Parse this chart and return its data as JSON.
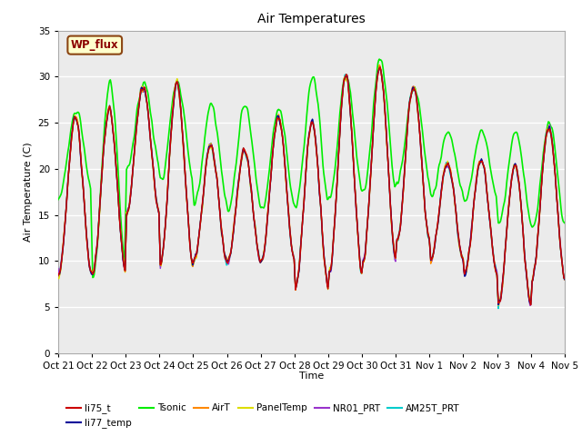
{
  "title": "Air Temperatures",
  "xlabel": "Time",
  "ylabel": "Air Temperature (C)",
  "ylim": [
    0,
    35
  ],
  "yticks": [
    0,
    5,
    10,
    15,
    20,
    25,
    30,
    35
  ],
  "annotation_text": "WP_flux",
  "annotation_color": "#8B0000",
  "annotation_bg": "#FFFFCC",
  "annotation_border": "#8B4513",
  "series_colors": {
    "li75_t": "#CC0000",
    "li77_temp": "#000099",
    "Tsonic": "#00EE00",
    "AirT": "#FF8800",
    "PanelTemp": "#DDDD00",
    "NR01_PRT": "#9933CC",
    "AM25T_PRT": "#00CCCC"
  },
  "x_tick_labels": [
    "Oct 21",
    "Oct 22",
    "Oct 23",
    "Oct 24",
    "Oct 25",
    "Oct 26",
    "Oct 27",
    "Oct 28",
    "Oct 29",
    "Oct 30",
    "Oct 31",
    "Nov 1",
    "Nov 2",
    "Nov 3",
    "Nov 4",
    "Nov 5"
  ],
  "plot_bg_color": "#EBEBEB",
  "grid_color": "#FFFFFF",
  "daily_peaks": [
    25.5,
    26.5,
    29.0,
    29.0,
    22.5,
    22.0,
    25.5,
    25.0,
    30.0,
    31.0,
    29.0,
    20.5,
    21.0,
    20.5,
    24.5,
    25.0
  ],
  "daily_troughs": [
    8.5,
    8.5,
    15.0,
    9.5,
    10.0,
    10.0,
    10.0,
    7.0,
    8.5,
    10.0,
    12.0,
    10.0,
    8.5,
    5.0,
    8.0,
    10.0
  ],
  "tsonic_peaks": [
    26.5,
    29.5,
    29.5,
    29.5,
    27.0,
    27.0,
    26.5,
    30.0,
    30.0,
    32.0,
    29.0,
    24.0,
    24.0,
    24.0,
    25.0,
    25.5
  ],
  "tsonic_troughs": [
    17.0,
    8.5,
    20.0,
    18.5,
    16.0,
    15.5,
    15.5,
    16.0,
    17.0,
    17.5,
    18.5,
    17.0,
    16.5,
    14.0,
    13.5,
    13.5
  ]
}
